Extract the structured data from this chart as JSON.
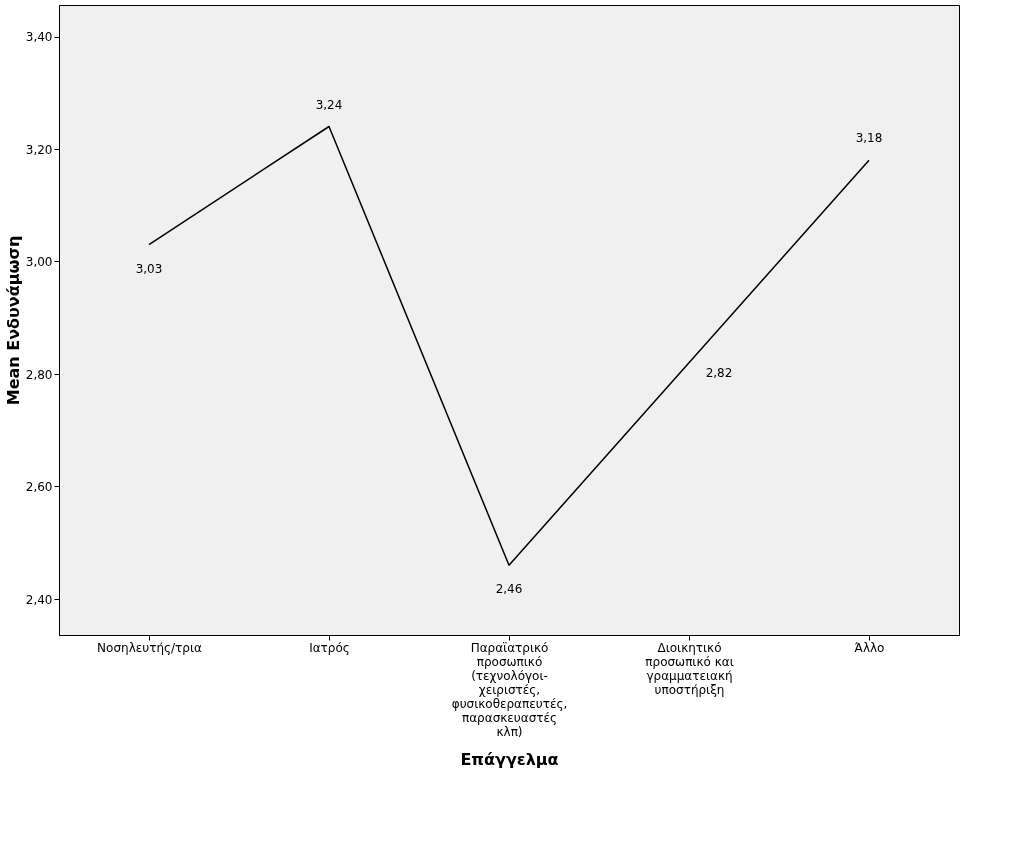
{
  "chart_data": {
    "type": "line",
    "xlabel": "Επάγγελμα",
    "ylabel": "Mean Ενδυνάμωση",
    "categories": [
      "Νοσηλευτής/τρια",
      "Ιατρός",
      "Παραϊατρικό προσωπικό (τεχνολόγοι-χειριστές, φυσικοθεραπευτές, παρασκευαστές κλπ)",
      "Διοικητικό προσωπικό και γραμματειακή υποστήριξη",
      "Άλλο"
    ],
    "series": [
      {
        "color": "#000000",
        "values": [
          3.03,
          3.24,
          2.46,
          2.82,
          3.18
        ]
      }
    ],
    "value_labels": [
      "3,03",
      "3,24",
      "2,46",
      "2,82",
      "3,18"
    ],
    "ylim": [
      2.336,
      3.456
    ],
    "yticks": [
      {
        "value": 2.4,
        "label": "2,40"
      },
      {
        "value": 2.6,
        "label": "2,60"
      },
      {
        "value": 2.8,
        "label": "2,80"
      },
      {
        "value": 3.0,
        "label": "3,00"
      },
      {
        "value": 3.2,
        "label": "3,20"
      },
      {
        "value": 3.4,
        "label": "3,40"
      }
    ],
    "grid": false,
    "marker": "none",
    "line_style": "solid"
  }
}
